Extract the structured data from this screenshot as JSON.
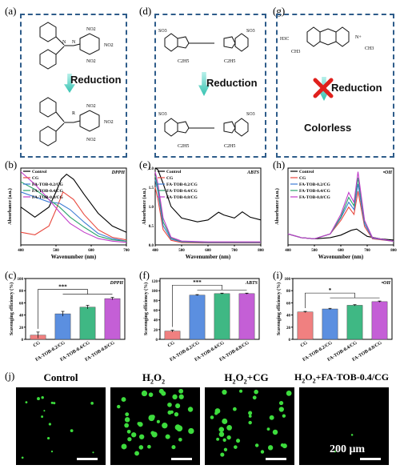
{
  "panels": {
    "a": "(a)",
    "d": "(d)",
    "g": "(g)",
    "b": "(b)",
    "e": "(e)",
    "h": "(h)",
    "c": "(c)",
    "f": "(f)",
    "i": "(i)",
    "j": "(j)"
  },
  "schemes": {
    "reduction_label": "Reduction",
    "colorless_label": "Colorless",
    "a_top": {
      "no2_1": "NO2",
      "no2_2": "NO2",
      "no2_3": "NO2"
    },
    "a_bottom": {
      "r": "R",
      "no2_1": "NO2",
      "no2_2": "NO2",
      "no2_3": "NO2"
    },
    "d_top": {
      "so3_l": "SO3",
      "so3_r": "SO3",
      "c2h5_l": "C2H5",
      "c2h5_r": "C2H5"
    },
    "d_bottom": {
      "so3_l": "SO3",
      "so3_r": "SO3",
      "c2h5_l": "C2H5",
      "c2h5_r": "C2H5"
    },
    "g_top": {
      "h3c": "H3C",
      "ch3_l": "CH3",
      "ch3_r": "CH3",
      "n_plus": "N+"
    }
  },
  "legend": [
    "Control",
    "CG",
    "FA-TOB-0.2/CG",
    "FA-TOB-0.4/CG",
    "FA-TOB-0.8/CG"
  ],
  "series_colors": [
    "#000000",
    "#e8493f",
    "#3b7bd4",
    "#2aa36b",
    "#c13cc9"
  ],
  "bar_colors": [
    "#f08080",
    "#5b8fe0",
    "#3fb884",
    "#c45fd6"
  ],
  "bar_categories": [
    "CG",
    "FA-TOB-0.2/CG",
    "FA-TOB-0.4/CG",
    "FA-TOB-0.8/CG"
  ],
  "chart_data": [
    {
      "type": "line",
      "panel": "b",
      "title": "DPPH",
      "xlabel": "Wavenumber (nm)",
      "ylabel": "Absorbance (a.u.)",
      "xlim": [
        400,
        700
      ],
      "xticks": [
        "400",
        "500",
        "600",
        "700"
      ],
      "series": [
        {
          "name": "Control",
          "x": [
            400,
            440,
            480,
            500,
            515,
            530,
            550,
            580,
            620,
            660,
            700
          ],
          "y": [
            0.3,
            0.22,
            0.3,
            0.42,
            0.52,
            0.56,
            0.52,
            0.4,
            0.25,
            0.15,
            0.1
          ]
        },
        {
          "name": "CG",
          "x": [
            400,
            440,
            480,
            500,
            520,
            550,
            580,
            620,
            660,
            700
          ],
          "y": [
            0.1,
            0.08,
            0.15,
            0.28,
            0.42,
            0.36,
            0.24,
            0.12,
            0.06,
            0.04
          ]
        },
        {
          "name": "FA-TOB-0.2/CG",
          "x": [
            400,
            440,
            480,
            510,
            540,
            580,
            620,
            660,
            700
          ],
          "y": [
            0.42,
            0.38,
            0.34,
            0.33,
            0.28,
            0.18,
            0.09,
            0.05,
            0.03
          ]
        },
        {
          "name": "FA-TOB-0.4/CG",
          "x": [
            400,
            440,
            480,
            510,
            540,
            580,
            620,
            660,
            700
          ],
          "y": [
            0.5,
            0.44,
            0.36,
            0.3,
            0.22,
            0.14,
            0.07,
            0.04,
            0.03
          ]
        },
        {
          "name": "FA-TOB-0.8/CG",
          "x": [
            400,
            440,
            480,
            510,
            540,
            580,
            620,
            660,
            700
          ],
          "y": [
            0.58,
            0.48,
            0.36,
            0.26,
            0.17,
            0.1,
            0.05,
            0.03,
            0.02
          ]
        }
      ]
    },
    {
      "type": "line",
      "panel": "e",
      "title": "ABTS",
      "xlabel": "Wavenumber (nm)",
      "ylabel": "Absorbance (a.u.)",
      "xlim": [
        400,
        800
      ],
      "ylim": [
        0,
        2.0
      ],
      "xticks": [
        "400",
        "500",
        "600",
        "700",
        "800"
      ],
      "yticks": [
        "0.0",
        "0.5",
        "1.0",
        "1.5",
        "2.0"
      ],
      "series": [
        {
          "name": "Control",
          "x": [
            400,
            410,
            430,
            460,
            500,
            560,
            600,
            640,
            660,
            700,
            730,
            760,
            800
          ],
          "y": [
            2.0,
            1.96,
            1.6,
            1.0,
            0.7,
            0.6,
            0.65,
            0.85,
            0.78,
            0.7,
            0.86,
            0.72,
            0.65
          ]
        },
        {
          "name": "CG",
          "x": [
            400,
            410,
            430,
            460,
            500,
            600,
            700,
            800
          ],
          "y": [
            1.5,
            1.2,
            0.4,
            0.12,
            0.06,
            0.05,
            0.05,
            0.05
          ]
        },
        {
          "name": "FA-TOB-0.2/CG",
          "x": [
            400,
            410,
            430,
            460,
            500,
            600,
            700,
            800
          ],
          "y": [
            1.7,
            1.4,
            0.5,
            0.15,
            0.08,
            0.06,
            0.06,
            0.06
          ]
        },
        {
          "name": "FA-TOB-0.4/CG",
          "x": [
            400,
            410,
            430,
            460,
            500,
            600,
            700,
            800
          ],
          "y": [
            1.8,
            1.5,
            0.6,
            0.18,
            0.09,
            0.07,
            0.07,
            0.07
          ]
        },
        {
          "name": "FA-TOB-0.8/CG",
          "x": [
            400,
            410,
            430,
            460,
            500,
            600,
            700,
            800
          ],
          "y": [
            1.9,
            1.6,
            0.7,
            0.2,
            0.1,
            0.08,
            0.08,
            0.08
          ]
        }
      ]
    },
    {
      "type": "line",
      "panel": "h",
      "title": "•OH",
      "xlabel": "Wavenumber (nm)",
      "ylabel": "Absorbance (a.u.)",
      "xlim": [
        400,
        800
      ],
      "xticks": [
        "400",
        "500",
        "600",
        "700",
        "800"
      ],
      "series": [
        {
          "name": "Control",
          "x": [
            400,
            450,
            500,
            560,
            600,
            640,
            660,
            700,
            750,
            800
          ],
          "y": [
            0.18,
            0.12,
            0.1,
            0.12,
            0.16,
            0.24,
            0.26,
            0.14,
            0.1,
            0.08
          ]
        },
        {
          "name": "CG",
          "x": [
            400,
            450,
            500,
            560,
            600,
            630,
            650,
            665,
            690,
            720,
            800
          ],
          "y": [
            0.18,
            0.12,
            0.1,
            0.18,
            0.4,
            0.62,
            0.5,
            0.88,
            0.3,
            0.1,
            0.06
          ]
        },
        {
          "name": "FA-TOB-0.2/CG",
          "x": [
            400,
            450,
            500,
            560,
            600,
            630,
            650,
            665,
            690,
            720,
            800
          ],
          "y": [
            0.18,
            0.12,
            0.1,
            0.18,
            0.44,
            0.7,
            0.58,
            1.0,
            0.34,
            0.11,
            0.06
          ]
        },
        {
          "name": "FA-TOB-0.4/CG",
          "x": [
            400,
            450,
            500,
            560,
            600,
            630,
            650,
            665,
            690,
            720,
            800
          ],
          "y": [
            0.18,
            0.12,
            0.1,
            0.18,
            0.46,
            0.78,
            0.64,
            1.1,
            0.38,
            0.12,
            0.06
          ]
        },
        {
          "name": "FA-TOB-0.8/CG",
          "x": [
            400,
            450,
            500,
            560,
            600,
            630,
            650,
            665,
            690,
            720,
            800
          ],
          "y": [
            0.18,
            0.12,
            0.1,
            0.18,
            0.5,
            0.86,
            0.7,
            1.2,
            0.4,
            0.12,
            0.06
          ]
        }
      ]
    },
    {
      "type": "bar",
      "panel": "c",
      "title": "DPPH",
      "categories": [
        "CG",
        "FA-TOB-0.2/CG",
        "FA-TOB-0.4/CG",
        "FA-TOB-0.8/CG"
      ],
      "values": [
        7,
        42,
        53,
        67
      ],
      "errors": [
        5,
        4,
        3,
        2
      ],
      "ylabel": "Scavenging efficiency (%)",
      "ylim": [
        0,
        100
      ],
      "yticks": [
        "0",
        "20",
        "40",
        "60",
        "80",
        "100"
      ],
      "significance": "***"
    },
    {
      "type": "bar",
      "panel": "f",
      "title": "ABTS",
      "categories": [
        "CG",
        "FA-TOB-0.2/CG",
        "FA-TOB-0.4/CG",
        "FA-TOB-0.8/CG"
      ],
      "values": [
        17,
        91,
        94,
        94
      ],
      "errors": [
        2,
        1,
        1,
        1
      ],
      "ylabel": "Scavenging efficiency (%)",
      "ylim": [
        0,
        125
      ],
      "yticks": [
        "0",
        "20",
        "40",
        "60",
        "80",
        "100",
        "120"
      ],
      "significance": "***"
    },
    {
      "type": "bar",
      "panel": "i",
      "title": "•OH",
      "categories": [
        "CG",
        "FA-TOB-0.2/CG",
        "FA-TOB-0.4/CG",
        "FA-TOB-0.8/CG"
      ],
      "values": [
        45,
        50,
        56,
        62
      ],
      "errors": [
        1,
        1,
        1,
        1
      ],
      "ylabel": "Scavenging efficiency (%)",
      "ylim": [
        0,
        100
      ],
      "yticks": [
        "0",
        "20",
        "40",
        "60",
        "80",
        "100"
      ],
      "significance": "*"
    }
  ],
  "micrographs": [
    {
      "title": "Control"
    },
    {
      "title": "H2O2"
    },
    {
      "title": "H2O2+CG"
    },
    {
      "title": "H2O2+FA-TOB-0.4/CG",
      "scalebar": "200 μm"
    }
  ]
}
